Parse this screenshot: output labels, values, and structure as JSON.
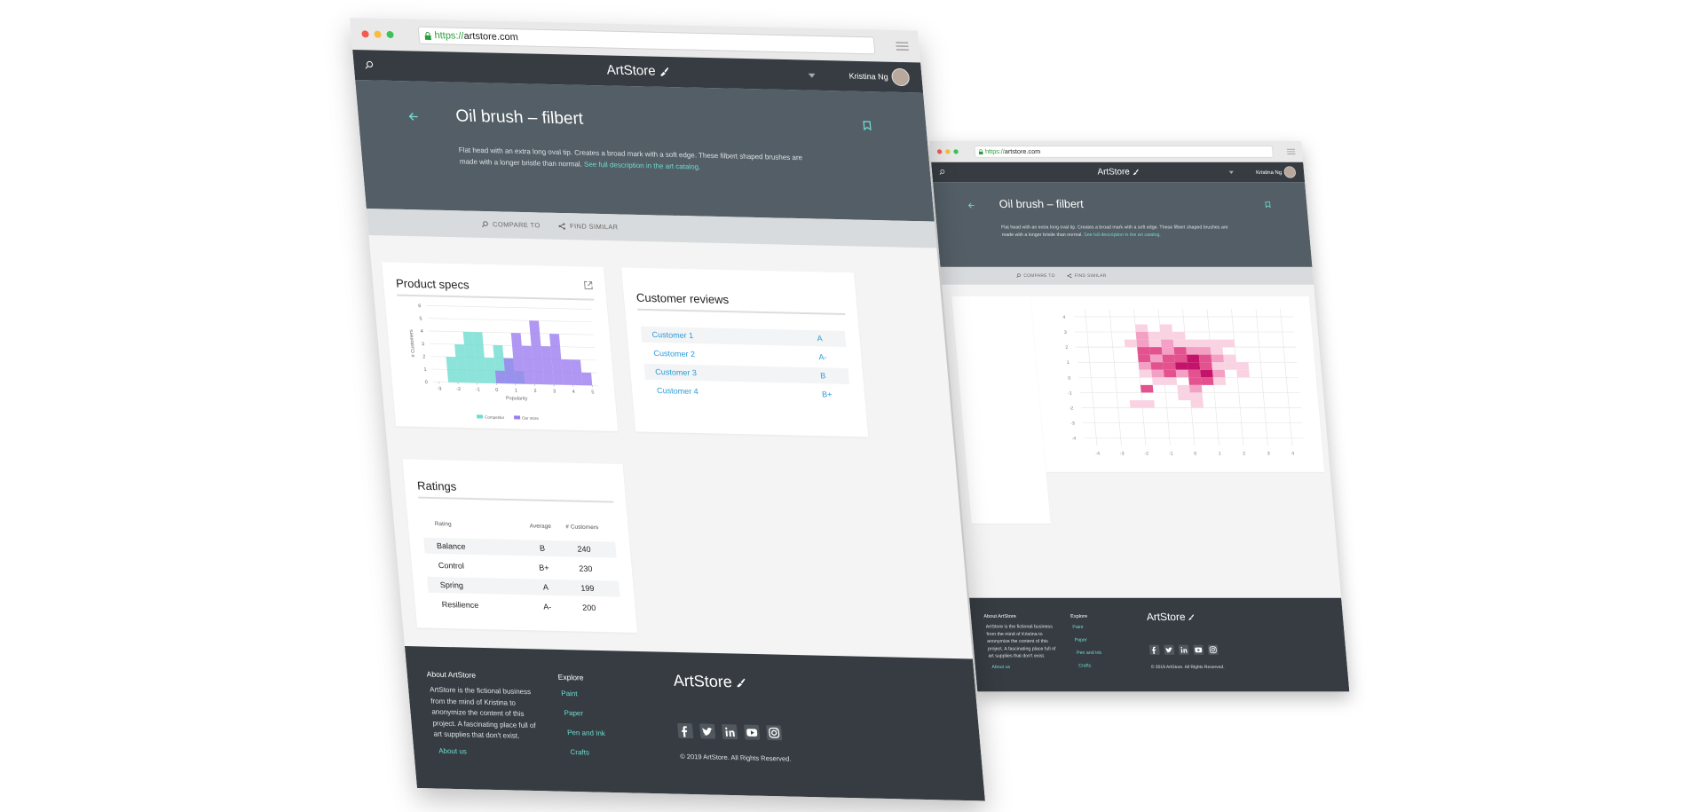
{
  "browser": {
    "url_scheme": "https://",
    "url_host": "artstore.com"
  },
  "nav": {
    "logo": "ArtStore",
    "user": "Kristina Ng"
  },
  "hero": {
    "title": "Oil brush – filbert",
    "description": "Flat head with an extra long oval tip. Creates a broad mark with a soft edge. These filbert shaped brushes are made with a longer bristle than normal.",
    "link": "See full description in the art catalog."
  },
  "actions": [
    "COMPARE TO",
    "FIND SIMILAR"
  ],
  "product_specs": {
    "title": "Product specs",
    "chart": {
      "type": "histogram",
      "bins": [
        -3,
        -2.5,
        -2,
        -1.5,
        -1,
        -0.5,
        0,
        0.5,
        1,
        1.5,
        2,
        2.5,
        3,
        3.5,
        4,
        4.5,
        5
      ],
      "series": [
        {
          "name": "Competitor",
          "color": "#6fdcd0",
          "values": [
            0,
            2,
            3,
            4,
            4,
            2,
            3,
            2,
            1,
            0,
            0,
            0,
            0,
            0,
            0,
            0
          ]
        },
        {
          "name": "Our store",
          "color": "#9b7df0",
          "values": [
            0,
            0,
            0,
            0,
            0,
            0,
            1,
            2,
            4,
            3,
            5,
            3,
            4,
            2,
            2,
            1
          ]
        }
      ],
      "xlim": [
        -3.3,
        5.3
      ],
      "ylim": [
        0,
        6
      ],
      "xticks": [
        -3,
        -2,
        -1,
        0,
        1,
        2,
        3,
        4,
        5
      ],
      "yticks": [
        0,
        1,
        2,
        3,
        4,
        5,
        6
      ],
      "x_label": "Popularity",
      "y_label": "# Customers",
      "grid": true
    }
  },
  "customer_reviews": {
    "title": "Customer reviews",
    "rows": [
      [
        "Customer 1",
        "A"
      ],
      [
        "Customer 2",
        "A-"
      ],
      [
        "Customer 3",
        "B"
      ],
      [
        "Customer 4",
        "B+"
      ]
    ]
  },
  "ratings": {
    "title": "Ratings",
    "columns": [
      "Rating",
      "Average",
      "# Customers"
    ],
    "rows": [
      [
        "Balance",
        "B",
        "240"
      ],
      [
        "Control",
        "B+",
        "230"
      ],
      [
        "Spring",
        "A",
        "199"
      ],
      [
        "Resilience",
        "A-",
        "200"
      ]
    ]
  },
  "heatmap": {
    "type": "heatmap",
    "xlim": [
      -4.5,
      4.5
    ],
    "ylim": [
      -4.5,
      4.5
    ],
    "xticks": [
      -4,
      -3,
      -2,
      -1,
      0,
      1,
      2,
      3,
      4
    ],
    "yticks": [
      -4,
      -3,
      -2,
      -1,
      0,
      1,
      2,
      3,
      4
    ],
    "grid": true,
    "x_edges": [
      -2.5,
      -2,
      -1.5,
      -1,
      -0.5,
      0,
      0.5,
      1,
      1.5,
      2,
      2.5
    ],
    "y_edges": [
      3.5,
      3,
      2.5,
      2,
      1.5,
      1,
      0.5,
      0,
      -0.5,
      -1,
      -1.5,
      -2
    ],
    "colors": [
      "#fad3e3",
      "#f3a0c4",
      "#e3528f",
      "#c4136a"
    ],
    "values": [
      [
        null,
        1,
        null,
        1,
        null,
        null,
        null,
        null,
        null,
        null
      ],
      [
        null,
        2,
        1,
        1,
        1,
        null,
        null,
        null,
        null,
        null
      ],
      [
        1,
        2,
        1,
        2,
        1,
        1,
        1,
        1,
        1,
        null
      ],
      [
        null,
        3,
        3,
        2,
        3,
        2,
        2,
        1,
        null,
        null
      ],
      [
        null,
        3,
        2,
        3,
        3,
        4,
        3,
        2,
        1,
        null
      ],
      [
        null,
        2,
        3,
        3,
        4,
        4,
        3,
        1,
        1,
        1
      ],
      [
        null,
        1,
        2,
        3,
        2,
        3,
        4,
        2,
        null,
        1
      ],
      [
        null,
        null,
        1,
        1,
        null,
        3,
        3,
        1,
        null,
        null
      ],
      [
        null,
        3,
        null,
        null,
        1,
        2,
        null,
        null,
        null,
        null
      ],
      [
        null,
        null,
        null,
        null,
        1,
        1,
        null,
        null,
        null,
        null
      ],
      [
        1,
        1,
        null,
        null,
        null,
        1,
        null,
        null,
        null,
        null
      ]
    ]
  },
  "footer": {
    "about_title": "About ArtStore",
    "about_text": "ArtStore is the fictional business from the mind of Kristina to anonymize the content of this project. A fascinating place full of art supplies that don't exist.",
    "about_link": "About us",
    "explore_title": "Explore",
    "explore_links": [
      "Paint",
      "Paper",
      "Pen and Ink",
      "Crafts"
    ],
    "logo": "ArtStore",
    "copyright": "© 2019 ArtStore. All Rights Reserved."
  }
}
